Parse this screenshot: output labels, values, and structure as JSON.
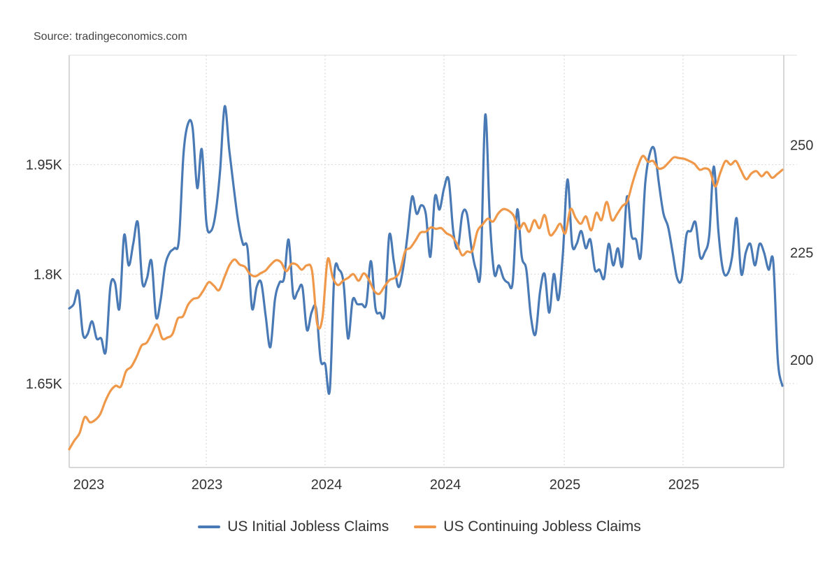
{
  "source": "Source: tradingeconomics.com",
  "chart_data": {
    "type": "line",
    "title": "",
    "x_tick_labels": [
      "2023",
      "2023",
      "2024",
      "2024",
      "2025",
      "2025"
    ],
    "y_left": {
      "ticks": [
        1650,
        1800,
        1950
      ],
      "tick_labels": [
        "1.65K",
        "1.8K",
        "1.95K"
      ],
      "range": [
        1535,
        2100
      ]
    },
    "y_right": {
      "ticks": [
        200,
        225,
        250
      ],
      "tick_labels": [
        "200",
        "225",
        "250"
      ],
      "range": [
        175,
        270.9
      ]
    },
    "grid": true,
    "legend_position": "bottom-center",
    "series": [
      {
        "name": "US Initial Jobless Claims",
        "axis": "right",
        "color": "#4a7ab5",
        "values": [
          212,
          213,
          216,
          206,
          206,
          209,
          205,
          205,
          202,
          217,
          218,
          212,
          229,
          222,
          227,
          232,
          218,
          219,
          223,
          210,
          214,
          222,
          225,
          226,
          228,
          248,
          255,
          254,
          240,
          249,
          232,
          230,
          234,
          244,
          259,
          249,
          240,
          232,
          227,
          226,
          212,
          217,
          218,
          210,
          203,
          214,
          218,
          219,
          228,
          215,
          216,
          217,
          207,
          211,
          212,
          200,
          199,
          193,
          220,
          221,
          218,
          205,
          214,
          213,
          213,
          213,
          223,
          212,
          211,
          211,
          229,
          223,
          217,
          221,
          229,
          238,
          234,
          236,
          234,
          224,
          238,
          235,
          240,
          242,
          230,
          226,
          234,
          234,
          226,
          221,
          221,
          257,
          233,
          220,
          222,
          219,
          218,
          218,
          235,
          224,
          221,
          210,
          206,
          216,
          220,
          211,
          220,
          214,
          225,
          242,
          227,
          227,
          230,
          226,
          228,
          221,
          221,
          219,
          227,
          222,
          226,
          222,
          238,
          229,
          228,
          224,
          241,
          248,
          249,
          241,
          234,
          231,
          225,
          219,
          219,
          229,
          230,
          232,
          224,
          225,
          229,
          245,
          230,
          221,
          220,
          224,
          233,
          220,
          225,
          227,
          222,
          227,
          225,
          221,
          223,
          200,
          194
        ]
      },
      {
        "name": "US Continuing Jobless Claims",
        "axis": "left",
        "color": "#f0984a",
        "values": [
          1560,
          1572,
          1582,
          1604,
          1597,
          1600,
          1608,
          1626,
          1640,
          1647,
          1646,
          1667,
          1673,
          1686,
          1702,
          1706,
          1719,
          1731,
          1712,
          1713,
          1718,
          1739,
          1742,
          1758,
          1766,
          1768,
          1778,
          1789,
          1784,
          1778,
          1795,
          1812,
          1820,
          1813,
          1810,
          1800,
          1797,
          1801,
          1805,
          1813,
          1819,
          1816,
          1804,
          1814,
          1813,
          1806,
          1812,
          1804,
          1731,
          1740,
          1820,
          1795,
          1785,
          1791,
          1795,
          1800,
          1791,
          1801,
          1792,
          1777,
          1773,
          1783,
          1792,
          1795,
          1804,
          1831,
          1836,
          1846,
          1857,
          1858,
          1864,
          1862,
          1863,
          1856,
          1852,
          1842,
          1826,
          1831,
          1832,
          1859,
          1868,
          1876,
          1872,
          1883,
          1889,
          1887,
          1880,
          1862,
          1870,
          1858,
          1874,
          1863,
          1881,
          1854,
          1859,
          1869,
          1856,
          1889,
          1877,
          1869,
          1879,
          1860,
          1884,
          1874,
          1899,
          1874,
          1882,
          1893,
          1900,
          1925,
          1947,
          1962,
          1954,
          1955,
          1945,
          1946,
          1953,
          1960,
          1959,
          1958,
          1955,
          1951,
          1943,
          1945,
          1941,
          1920,
          1939,
          1955,
          1950,
          1955,
          1942,
          1930,
          1938,
          1941,
          1934,
          1940,
          1932,
          1937,
          1943
        ]
      }
    ]
  },
  "legend": {
    "initial_label": "US Initial Jobless Claims",
    "continuing_label": "US Continuing Jobless Claims",
    "initial_color": "#4a7ab5",
    "continuing_color": "#f0984a"
  }
}
